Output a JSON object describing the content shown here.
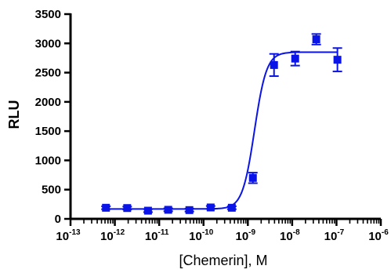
{
  "chart_data": {
    "type": "scatter",
    "title": "",
    "xlabel": "[Chemerin], M",
    "ylabel": "RLU",
    "x_scale": "log",
    "xlim": [
      1e-13,
      1e-06
    ],
    "ylim": [
      0,
      3500
    ],
    "yticks": [
      "0",
      "500",
      "1000",
      "1500",
      "2000",
      "2500",
      "3000",
      "3500"
    ],
    "xticks": [
      {
        "value": 1e-13,
        "base": "10",
        "exp": "-13"
      },
      {
        "value": 1e-12,
        "base": "10",
        "exp": "-12"
      },
      {
        "value": 1e-11,
        "base": "10",
        "exp": "-11"
      },
      {
        "value": 1e-10,
        "base": "10",
        "exp": "-10"
      },
      {
        "value": 1e-09,
        "base": "10",
        "exp": "-9"
      },
      {
        "value": 1e-08,
        "base": "10",
        "exp": "-8"
      },
      {
        "value": 1e-07,
        "base": "10",
        "exp": "-7"
      },
      {
        "value": 1e-06,
        "base": "10",
        "exp": "-6"
      }
    ],
    "grid": false,
    "legend": "none",
    "color": "#0a14e6",
    "series": [
      {
        "points": [
          {
            "x": 6.3e-13,
            "y": 190,
            "err": 25
          },
          {
            "x": 1.9e-12,
            "y": 185,
            "err": 25
          },
          {
            "x": 5.6e-12,
            "y": 140,
            "err": 25
          },
          {
            "x": 1.6e-11,
            "y": 155,
            "err": 25
          },
          {
            "x": 4.8e-11,
            "y": 150,
            "err": 25
          },
          {
            "x": 1.45e-10,
            "y": 195,
            "err": 25
          },
          {
            "x": 4.35e-10,
            "y": 190,
            "err": 25
          },
          {
            "x": 1.3e-09,
            "y": 700,
            "err": 90
          },
          {
            "x": 3.9e-09,
            "y": 2630,
            "err": 190
          },
          {
            "x": 1.17e-08,
            "y": 2740,
            "err": 120
          },
          {
            "x": 3.5e-08,
            "y": 3070,
            "err": 90
          },
          {
            "x": 1.05e-07,
            "y": 2720,
            "err": 200
          }
        ]
      }
    ],
    "fit": {
      "bottom": 170,
      "top": 2850,
      "log_ec50": -8.85,
      "hill": 3.2,
      "x_start": 6.3e-13,
      "x_end": 1.05e-07
    }
  }
}
